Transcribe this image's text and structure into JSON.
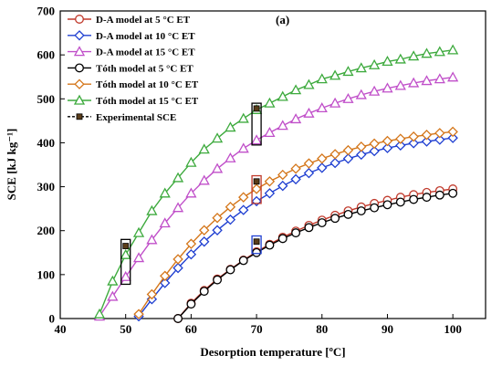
{
  "chart_data": {
    "type": "line",
    "panel_label": "(a)",
    "xlabel": "Desorption temperature [ºC]",
    "ylabel": "SCE [kJ kg⁻¹]",
    "xlim": [
      40,
      105
    ],
    "ylim": [
      0,
      700
    ],
    "x_ticks": [
      "40",
      "50",
      "60",
      "70",
      "80",
      "90",
      "100"
    ],
    "y_ticks": [
      "0",
      "100",
      "200",
      "300",
      "400",
      "500",
      "600",
      "700"
    ],
    "grid": false,
    "legend_position": "top-left",
    "series": [
      {
        "name": "D-A model at 5 °C ET",
        "color": "#c0392b",
        "marker": "circle",
        "x": [
          58,
          60,
          62,
          64,
          66,
          68,
          70,
          72,
          74,
          76,
          78,
          80,
          82,
          84,
          86,
          88,
          90,
          92,
          94,
          96,
          98,
          100
        ],
        "y": [
          0,
          35,
          64,
          90,
          112,
          133,
          152,
          169,
          185,
          199,
          212,
          224,
          235,
          245,
          254,
          262,
          269,
          276,
          282,
          287,
          291,
          295
        ]
      },
      {
        "name": "D-A model at 10 °C ET",
        "color": "#1f3fd1",
        "marker": "diamond",
        "x": [
          52,
          54,
          56,
          58,
          60,
          62,
          64,
          66,
          68,
          70,
          72,
          74,
          76,
          78,
          80,
          82,
          84,
          86,
          88,
          90,
          92,
          94,
          96,
          98,
          100
        ],
        "y": [
          5,
          44,
          81,
          115,
          146,
          175,
          201,
          225,
          247,
          267,
          285,
          302,
          317,
          331,
          343,
          354,
          364,
          373,
          381,
          388,
          394,
          399,
          403,
          407,
          411
        ]
      },
      {
        "name": "D-A model at 15 °C ET",
        "color": "#c04fc9",
        "marker": "triangle",
        "x": [
          46,
          48,
          50,
          52,
          54,
          56,
          58,
          60,
          62,
          64,
          66,
          68,
          70,
          72,
          74,
          76,
          78,
          80,
          82,
          84,
          86,
          88,
          90,
          92,
          94,
          96,
          98,
          100
        ],
        "y": [
          5,
          50,
          95,
          138,
          179,
          217,
          252,
          285,
          314,
          341,
          365,
          387,
          406,
          423,
          439,
          454,
          467,
          479,
          490,
          500,
          509,
          517,
          524,
          530,
          536,
          541,
          545,
          549
        ]
      },
      {
        "name": "Tóth model at 5 °C ET",
        "color": "#000000",
        "marker": "circle",
        "x": [
          58,
          60,
          62,
          64,
          66,
          68,
          70,
          72,
          74,
          76,
          78,
          80,
          82,
          84,
          86,
          88,
          90,
          92,
          94,
          96,
          98,
          100
        ],
        "y": [
          0,
          33,
          62,
          88,
          111,
          132,
          150,
          167,
          182,
          195,
          207,
          218,
          228,
          237,
          245,
          252,
          259,
          265,
          271,
          276,
          281,
          285
        ]
      },
      {
        "name": "Tóth model at 10 °C ET",
        "color": "#d4761a",
        "marker": "diamond",
        "x": [
          52,
          54,
          56,
          58,
          60,
          62,
          64,
          66,
          68,
          70,
          72,
          74,
          76,
          78,
          80,
          82,
          84,
          86,
          88,
          90,
          92,
          94,
          96,
          98,
          100
        ],
        "y": [
          10,
          55,
          97,
          135,
          170,
          201,
          229,
          254,
          276,
          295,
          312,
          327,
          341,
          353,
          364,
          374,
          383,
          391,
          398,
          404,
          409,
          414,
          418,
          422,
          425
        ]
      },
      {
        "name": "Tóth model at 15 °C ET",
        "color": "#3daa3d",
        "marker": "triangle",
        "x": [
          46,
          48,
          50,
          52,
          54,
          56,
          58,
          60,
          62,
          64,
          66,
          68,
          70,
          72,
          74,
          76,
          78,
          80,
          82,
          84,
          86,
          88,
          90,
          92,
          94,
          96,
          98,
          100
        ],
        "y": [
          10,
          85,
          145,
          195,
          245,
          285,
          320,
          355,
          385,
          410,
          435,
          455,
          475,
          490,
          505,
          520,
          532,
          545,
          553,
          562,
          570,
          577,
          585,
          590,
          597,
          603,
          607,
          611
        ]
      },
      {
        "name": "Experimental SCE",
        "color": "#5a3d1a",
        "marker": "square",
        "line": "dashed",
        "x": [
          50,
          70,
          70,
          70
        ],
        "y": [
          165,
          175,
          312,
          478
        ]
      }
    ],
    "highlight_boxes": [
      {
        "x": [
          49.3,
          50.7
        ],
        "y": [
          78,
          180
        ]
      },
      {
        "x": [
          69.3,
          70.7
        ],
        "y": [
          148,
          188
        ]
      },
      {
        "x": [
          69.3,
          70.7
        ],
        "y": [
          262,
          325
        ]
      },
      {
        "x": [
          69.3,
          70.7
        ],
        "y": [
          395,
          490
        ]
      }
    ]
  }
}
